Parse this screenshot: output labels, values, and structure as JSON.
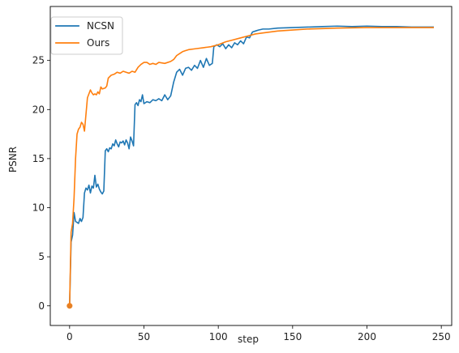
{
  "chart_data": {
    "type": "line",
    "title": "",
    "xlabel": "step",
    "ylabel": "PSNR",
    "xlim": [
      -13,
      257
    ],
    "ylim": [
      -2,
      30.5
    ],
    "xticks": [
      0,
      50,
      100,
      150,
      200,
      250
    ],
    "yticks": [
      0,
      5,
      10,
      15,
      20,
      25
    ],
    "grid": false,
    "legend_position": "upper-left",
    "series": [
      {
        "name": "NCSN",
        "color": "#1f77b4",
        "points": [
          [
            0,
            0
          ],
          [
            1,
            6.5
          ],
          [
            2,
            7.2
          ],
          [
            3,
            9.5
          ],
          [
            4,
            8.6
          ],
          [
            5,
            8.5
          ],
          [
            6,
            8.4
          ],
          [
            7,
            8.9
          ],
          [
            8,
            8.6
          ],
          [
            9,
            9.0
          ],
          [
            10,
            11.5
          ],
          [
            11,
            12.0
          ],
          [
            12,
            11.8
          ],
          [
            13,
            12.3
          ],
          [
            14,
            11.5
          ],
          [
            15,
            12.2
          ],
          [
            16,
            12.0
          ],
          [
            17,
            13.3
          ],
          [
            18,
            12.1
          ],
          [
            19,
            12.4
          ],
          [
            20,
            11.9
          ],
          [
            21,
            11.6
          ],
          [
            22,
            11.4
          ],
          [
            23,
            11.7
          ],
          [
            24,
            15.8
          ],
          [
            25,
            16.0
          ],
          [
            26,
            15.7
          ],
          [
            27,
            16.1
          ],
          [
            28,
            16.0
          ],
          [
            29,
            16.5
          ],
          [
            30,
            16.3
          ],
          [
            31,
            16.9
          ],
          [
            32,
            16.5
          ],
          [
            33,
            16.2
          ],
          [
            34,
            16.7
          ],
          [
            35,
            16.6
          ],
          [
            36,
            16.8
          ],
          [
            37,
            16.4
          ],
          [
            38,
            16.9
          ],
          [
            39,
            16.6
          ],
          [
            40,
            16.0
          ],
          [
            41,
            17.2
          ],
          [
            42,
            16.8
          ],
          [
            43,
            16.3
          ],
          [
            44,
            20.5
          ],
          [
            45,
            20.7
          ],
          [
            46,
            20.4
          ],
          [
            47,
            21.0
          ],
          [
            48,
            20.8
          ],
          [
            49,
            21.5
          ],
          [
            50,
            20.6
          ],
          [
            52,
            20.8
          ],
          [
            54,
            20.7
          ],
          [
            56,
            21.0
          ],
          [
            58,
            20.9
          ],
          [
            60,
            21.1
          ],
          [
            62,
            20.9
          ],
          [
            64,
            21.5
          ],
          [
            66,
            21.0
          ],
          [
            68,
            21.4
          ],
          [
            70,
            22.8
          ],
          [
            72,
            23.8
          ],
          [
            74,
            24.1
          ],
          [
            76,
            23.5
          ],
          [
            78,
            24.2
          ],
          [
            80,
            24.3
          ],
          [
            82,
            24.0
          ],
          [
            84,
            24.5
          ],
          [
            86,
            24.2
          ],
          [
            88,
            25.0
          ],
          [
            90,
            24.3
          ],
          [
            92,
            25.2
          ],
          [
            94,
            24.5
          ],
          [
            96,
            24.7
          ],
          [
            97,
            26.4
          ],
          [
            99,
            26.6
          ],
          [
            101,
            26.4
          ],
          [
            103,
            26.7
          ],
          [
            105,
            26.2
          ],
          [
            107,
            26.6
          ],
          [
            109,
            26.3
          ],
          [
            111,
            26.8
          ],
          [
            113,
            26.6
          ],
          [
            115,
            27.0
          ],
          [
            117,
            26.7
          ],
          [
            119,
            27.4
          ],
          [
            121,
            27.3
          ],
          [
            123,
            27.9
          ],
          [
            125,
            28.0
          ],
          [
            127,
            28.1
          ],
          [
            130,
            28.2
          ],
          [
            134,
            28.2
          ],
          [
            140,
            28.3
          ],
          [
            150,
            28.35
          ],
          [
            160,
            28.4
          ],
          [
            170,
            28.45
          ],
          [
            180,
            28.5
          ],
          [
            190,
            28.45
          ],
          [
            200,
            28.5
          ],
          [
            210,
            28.45
          ],
          [
            220,
            28.45
          ],
          [
            230,
            28.4
          ],
          [
            245,
            28.4
          ]
        ]
      },
      {
        "name": "Ours",
        "color": "#ff7f0e",
        "points": [
          [
            0,
            0
          ],
          [
            1,
            7.5
          ],
          [
            2,
            8.4
          ],
          [
            3,
            11.0
          ],
          [
            4,
            15.0
          ],
          [
            5,
            17.5
          ],
          [
            6,
            18.0
          ],
          [
            7,
            18.2
          ],
          [
            8,
            18.7
          ],
          [
            9,
            18.5
          ],
          [
            10,
            17.8
          ],
          [
            11,
            19.5
          ],
          [
            12,
            21.2
          ],
          [
            13,
            21.6
          ],
          [
            14,
            22.0
          ],
          [
            15,
            21.7
          ],
          [
            16,
            21.5
          ],
          [
            17,
            21.6
          ],
          [
            18,
            21.5
          ],
          [
            19,
            21.8
          ],
          [
            20,
            21.6
          ],
          [
            21,
            22.3
          ],
          [
            22,
            22.1
          ],
          [
            24,
            22.2
          ],
          [
            25,
            22.4
          ],
          [
            26,
            23.2
          ],
          [
            28,
            23.5
          ],
          [
            30,
            23.6
          ],
          [
            32,
            23.8
          ],
          [
            34,
            23.7
          ],
          [
            36,
            23.9
          ],
          [
            38,
            23.8
          ],
          [
            40,
            23.7
          ],
          [
            42,
            23.9
          ],
          [
            44,
            23.8
          ],
          [
            46,
            24.3
          ],
          [
            48,
            24.6
          ],
          [
            50,
            24.8
          ],
          [
            52,
            24.8
          ],
          [
            54,
            24.6
          ],
          [
            56,
            24.7
          ],
          [
            58,
            24.6
          ],
          [
            60,
            24.8
          ],
          [
            64,
            24.7
          ],
          [
            68,
            24.9
          ],
          [
            70,
            25.1
          ],
          [
            72,
            25.5
          ],
          [
            74,
            25.7
          ],
          [
            76,
            25.9
          ],
          [
            78,
            26.0
          ],
          [
            80,
            26.1
          ],
          [
            85,
            26.2
          ],
          [
            90,
            26.3
          ],
          [
            95,
            26.4
          ],
          [
            100,
            26.6
          ],
          [
            105,
            26.9
          ],
          [
            110,
            27.1
          ],
          [
            115,
            27.3
          ],
          [
            120,
            27.5
          ],
          [
            125,
            27.7
          ],
          [
            130,
            27.8
          ],
          [
            140,
            28.0
          ],
          [
            150,
            28.1
          ],
          [
            160,
            28.2
          ],
          [
            170,
            28.25
          ],
          [
            180,
            28.3
          ],
          [
            200,
            28.35
          ],
          [
            220,
            28.35
          ],
          [
            245,
            28.35
          ]
        ]
      }
    ]
  }
}
